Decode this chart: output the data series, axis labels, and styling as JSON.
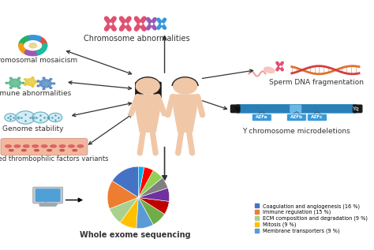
{
  "background_color": "#ffffff",
  "fig_w": 4.74,
  "fig_h": 3.17,
  "pie": {
    "values": [
      16,
      15,
      9,
      9,
      9,
      8,
      7,
      7,
      6,
      6,
      5,
      3
    ],
    "colors": [
      "#4472c4",
      "#ed7d31",
      "#a9d18e",
      "#ffc000",
      "#5b9bd5",
      "#70ad47",
      "#c00000",
      "#7030a0",
      "#808080",
      "#92d050",
      "#ff0000",
      "#00b0f0"
    ],
    "legend_labels": [
      "Coagulation and angiogenesis (16 %)",
      "Immune regulation (15 %)",
      "ECM composition and degradation (9 %)",
      "Mitosis (9 %)",
      "Membrane transporters (9 %)"
    ],
    "legend_colors": [
      "#4472c4",
      "#ed7d31",
      "#a9d18e",
      "#ffc000",
      "#5b9bd5"
    ]
  },
  "labels": {
    "chromosome_abnormalities": "Chromosome abnormalities",
    "chromosomal_mosaicism": "Chromosomal mosaicism",
    "immune_abnormalities": "Immune abnormalities",
    "genome_stability": "Genome stability",
    "inherited": "Inherited thrombophilic factors variants",
    "sperm_dna": "Sperm DNA fragmentation",
    "y_chromosome": "Y chromosome microdeletions",
    "whole_exome": "Whole exome sequencing"
  },
  "colors": {
    "skin": "#f0c8a8",
    "hair_female": "#1a1a1a",
    "hair_male": "#2a2a2a",
    "arrow": "#333333",
    "text": "#333333",
    "chrom_red": "#e05070",
    "chrom_purple": "#9b59b6",
    "chrom_blue": "#3498db",
    "ring1": "#e74c3c",
    "ring2": "#3498db",
    "ring3": "#27ae60",
    "ring4": "#f39c12",
    "ring5": "#9b59b6",
    "ring6": "#1abc9c",
    "virus1": "#5dba8c",
    "virus2": "#e8cc40",
    "virus3": "#5a8ec4",
    "cell_fill": "#c8e8f0",
    "cell_edge": "#4a9ab5",
    "blood_bg": "#f0b8a0",
    "blood_red": "#e05050",
    "y_chrom": "#2980b9",
    "y_black": "#1a1a1a",
    "azf_color": "#3a9ad9",
    "dna1": "#e07030",
    "dna2": "#d04040",
    "sperm_color": "#f0a0b0",
    "monitor_body": "#c0c8d0",
    "monitor_screen": "#50a0d8",
    "monitor_base": "#a0a8b0"
  },
  "fs": 6.5,
  "fs_bold": 7.0
}
